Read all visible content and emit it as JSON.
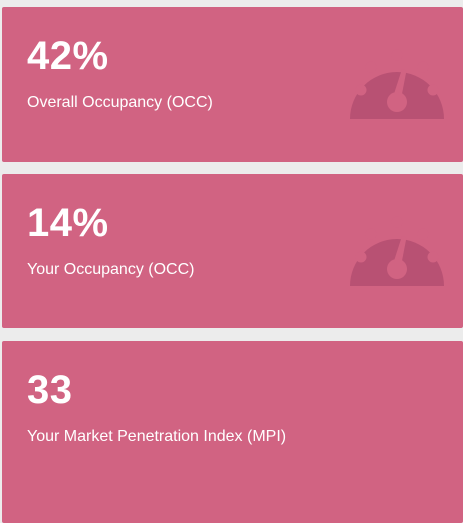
{
  "theme": {
    "card_color": "#d16382",
    "icon_color": "#b85173",
    "page_background": "#ececec"
  },
  "cards": [
    {
      "value": "42%",
      "label": "Overall Occupancy (OCC)",
      "icon": "speedometer-icon"
    },
    {
      "value": "14%",
      "label": "Your Occupancy (OCC)",
      "icon": "speedometer-icon"
    },
    {
      "value": "33",
      "label": "Your Market Penetration Index (MPI)",
      "icon": ""
    }
  ]
}
